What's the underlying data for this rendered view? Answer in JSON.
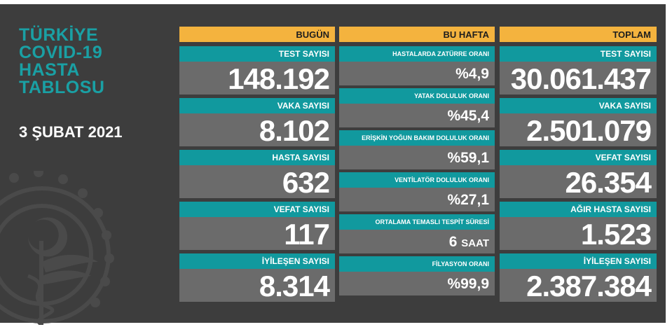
{
  "title_lines": [
    "TÜRKİYE",
    "COVID-19",
    "HASTA",
    "TABLOSU"
  ],
  "date": "3 ŞUBAT 2021",
  "colors": {
    "header": "#f4b33e",
    "label": "#11999e",
    "value_bg": "#6b6b6b",
    "board": "#3d3d3d",
    "title": "#1aa0a4"
  },
  "emblem_icon": "ministry-of-health-emblem-icon",
  "today": {
    "header": "BUGÜN",
    "items": [
      {
        "label": "TEST SAYISI",
        "value": "148.192"
      },
      {
        "label": "VAKA SAYISI",
        "value": "8.102"
      },
      {
        "label": "HASTA SAYISI",
        "value": "632"
      },
      {
        "label": "VEFAT SAYISI",
        "value": "117"
      },
      {
        "label": "İYİLEŞEN SAYISI",
        "value": "8.314"
      }
    ]
  },
  "week": {
    "header": "BU HAFTA",
    "items": [
      {
        "label": "HASTALARDA ZATÜRRE ORANI",
        "value": "%4,9",
        "unit": ""
      },
      {
        "label": "YATAK DOLULUK ORANI",
        "value": "%45,4",
        "unit": ""
      },
      {
        "label": "ERİŞKİN YOĞUN BAKIM DOLULUK ORANI",
        "value": "%59,1",
        "unit": ""
      },
      {
        "label": "VENTİLATÖR DOLULUK ORANI",
        "value": "%27,1",
        "unit": ""
      },
      {
        "label": "ORTALAMA TEMASLI TESPİT SÜRESİ",
        "value": "6",
        "unit": "SAAT"
      },
      {
        "label": "FİLYASYON ORANI",
        "value": "%99,9",
        "unit": ""
      }
    ]
  },
  "total": {
    "header": "TOPLAM",
    "items": [
      {
        "label": "TEST SAYISI",
        "value": "30.061.437"
      },
      {
        "label": "VAKA SAYISI",
        "value": "2.501.079"
      },
      {
        "label": "VEFAT SAYISI",
        "value": "26.354"
      },
      {
        "label": "AĞIR HASTA SAYISI",
        "value": "1.523"
      },
      {
        "label": "İYİLEŞEN SAYISI",
        "value": "2.387.384"
      }
    ]
  }
}
